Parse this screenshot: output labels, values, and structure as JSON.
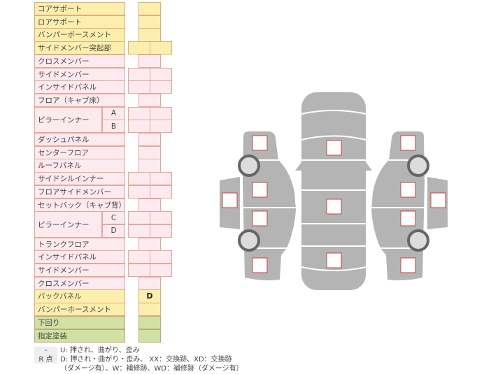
{
  "rows": [
    {
      "label": "コアサポート",
      "color": "yellow",
      "cells": 1,
      "values": [
        ""
      ]
    },
    {
      "label": "ロアサポート",
      "color": "yellow",
      "cells": 1,
      "values": [
        ""
      ]
    },
    {
      "label": "バンパーボースメント",
      "color": "yellow",
      "cells": 1,
      "values": [
        ""
      ]
    },
    {
      "label": "サイドメンバー突起部",
      "color": "yellow",
      "cells": 2,
      "values": [
        "",
        ""
      ]
    },
    {
      "label": "クロスメンバー",
      "color": "pink",
      "cells": 1,
      "values": [
        ""
      ]
    },
    {
      "label": "サイドメンバー",
      "color": "pink",
      "cells": 2,
      "values": [
        "",
        ""
      ]
    },
    {
      "label": "インサイドパネル",
      "color": "pink",
      "cells": 2,
      "values": [
        "",
        ""
      ]
    },
    {
      "label": "フロア（キャブ床）",
      "color": "pink",
      "cells": 1,
      "values": [
        ""
      ]
    },
    {
      "label": "ピラーインナー",
      "sub": "A",
      "group": "start",
      "color": "pink",
      "cells": 2,
      "values": [
        "",
        ""
      ]
    },
    {
      "label": "",
      "sub": "B",
      "group": "end",
      "color": "pink",
      "cells": 2,
      "values": [
        "",
        ""
      ]
    },
    {
      "label": "ダッシュパネル",
      "color": "pink",
      "cells": 1,
      "values": [
        ""
      ]
    },
    {
      "label": "センターフロア",
      "color": "pink",
      "cells": 1,
      "values": [
        ""
      ]
    },
    {
      "label": "ルーフパネル",
      "color": "pink",
      "cells": 1,
      "values": [
        ""
      ]
    },
    {
      "label": "サイドシルインナー",
      "color": "pink",
      "cells": 2,
      "values": [
        "",
        ""
      ]
    },
    {
      "label": "フロアサイドメンバー",
      "color": "pink",
      "cells": 2,
      "values": [
        "",
        ""
      ]
    },
    {
      "label": "セットバック（キャブ背）",
      "color": "pink",
      "cells": 1,
      "values": [
        ""
      ]
    },
    {
      "label": "ピラーインナー",
      "sub": "C",
      "group": "start",
      "color": "pink",
      "cells": 2,
      "values": [
        "",
        ""
      ]
    },
    {
      "label": "",
      "sub": "D",
      "group": "end",
      "color": "pink",
      "cells": 2,
      "values": [
        "",
        ""
      ]
    },
    {
      "label": "トランクフロア",
      "color": "pink",
      "cells": 1,
      "values": [
        ""
      ]
    },
    {
      "label": "インサイドパネル",
      "color": "pink",
      "cells": 2,
      "values": [
        "",
        ""
      ]
    },
    {
      "label": "サイドメンバー",
      "color": "pink",
      "cells": 2,
      "values": [
        "",
        ""
      ]
    },
    {
      "label": "クロスメンバー",
      "color": "pink",
      "cells": 1,
      "values": [
        ""
      ]
    },
    {
      "label": "バックパネル",
      "color": "yellow",
      "cells": 1,
      "values": [
        "D"
      ]
    },
    {
      "label": "バンパーホースメント",
      "color": "yellow",
      "cells": 1,
      "values": [
        ""
      ]
    },
    {
      "label": "下回り",
      "color": "green",
      "cells": 1,
      "values": [
        ""
      ]
    },
    {
      "label": "指定塗装",
      "color": "green",
      "cells": 1,
      "values": [
        ""
      ]
    }
  ],
  "legend": [
    {
      "key": "-",
      "text": "U: 押され、曲がり、歪み"
    },
    {
      "key": "R 点",
      "text": "D: 押され・曲がり・歪み、 XX：交換跡、XD：交換跡"
    },
    {
      "key": "",
      "text": "（ダメージ有）、W：補修跡、WD：補修跡（ダメージ有）"
    }
  ],
  "colors": {
    "yellow": "#fcefae",
    "pink": "#fdeaee",
    "green": "#cfe2a4",
    "car_body": "#b4b4b4",
    "mark_border": "#d04040"
  }
}
